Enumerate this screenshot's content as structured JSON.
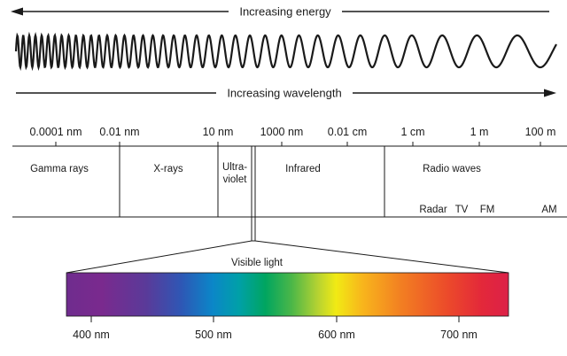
{
  "top_arrows": {
    "energy_label": "Increasing energy",
    "wavelength_label": "Increasing wavelength"
  },
  "scale": {
    "ticks": [
      "0.0001 nm",
      "0.01 nm",
      "10 nm",
      "1000 nm",
      "0.01 cm",
      "1 cm",
      "1 m",
      "100 m"
    ]
  },
  "bands": {
    "gamma": "Gamma rays",
    "xray": "X-rays",
    "uv_line1": "Ultra-",
    "uv_line2": "violet",
    "infrared": "Infrared",
    "radio": "Radio waves"
  },
  "radio_subbands": [
    "Radar",
    "TV",
    "FM",
    "AM"
  ],
  "visible": {
    "title": "Visible light",
    "ticks": [
      "400 nm",
      "500 nm",
      "600 nm",
      "700 nm"
    ]
  },
  "colors": {
    "ink": "#1a1a1a",
    "spectrum": [
      "#6f2c8e",
      "#7d2a8f",
      "#5b3a9a",
      "#2f57b5",
      "#0a86c8",
      "#00a0a8",
      "#00a560",
      "#4cb748",
      "#b8d331",
      "#f1ea14",
      "#f8b51c",
      "#f27d22",
      "#ec4b2a",
      "#e3283a",
      "#dc2148"
    ]
  }
}
